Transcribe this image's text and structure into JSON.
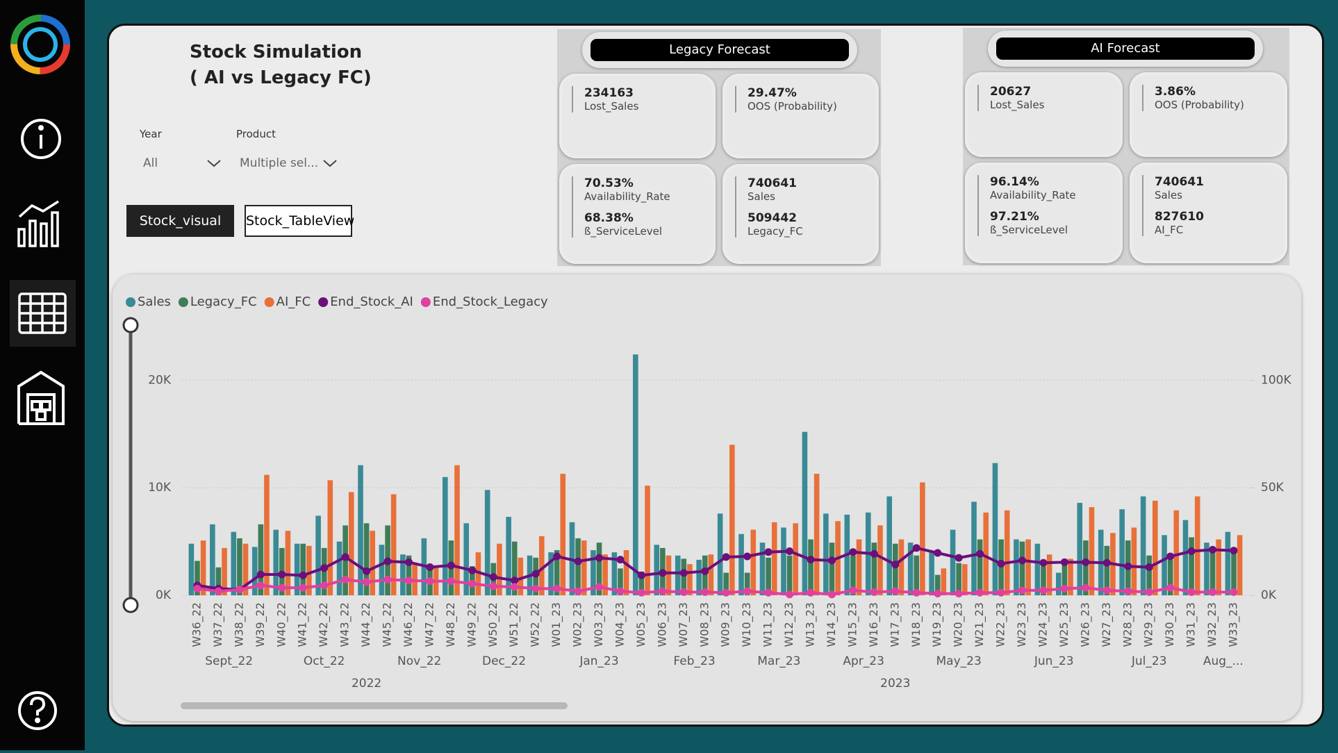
{
  "header": {
    "title_line1": "Stock Simulation",
    "title_line2": "( AI vs Legacy FC)"
  },
  "filters": [
    {
      "label": "Year",
      "value": "All"
    },
    {
      "label": "Product",
      "value": "Multiple sel..."
    }
  ],
  "buttons": [
    "Stock_visual",
    "Stock_TableView"
  ],
  "panels": [
    {
      "title": "Legacy Forecast",
      "cards": [
        {
          "items": [
            {
              "value": "234163",
              "label": "Lost_Sales"
            }
          ]
        },
        {
          "items": [
            {
              "value": "29.47%",
              "label": "OOS (Probability)"
            }
          ]
        },
        {
          "items": [
            {
              "value": "70.53%",
              "label": "Availability_Rate"
            },
            {
              "value": "68.38%",
              "label": "ß_ServiceLevel"
            }
          ]
        },
        {
          "items": [
            {
              "value": "740641",
              "label": "Sales"
            },
            {
              "value": "509442",
              "label": "Legacy_FC"
            }
          ]
        }
      ]
    },
    {
      "title": "AI Forecast",
      "cards": [
        {
          "items": [
            {
              "value": "20627",
              "label": "Lost_Sales"
            }
          ]
        },
        {
          "items": [
            {
              "value": "3.86%",
              "label": "OOS (Probability)"
            }
          ]
        },
        {
          "items": [
            {
              "value": "96.14%",
              "label": "Availability_Rate"
            },
            {
              "value": "97.21%",
              "label": "ß_ServiceLevel"
            }
          ]
        },
        {
          "items": [
            {
              "value": "740641",
              "label": "Sales"
            },
            {
              "value": "827610",
              "label": "AI_FC"
            }
          ]
        }
      ]
    }
  ],
  "chart_data": {
    "type": "bar",
    "categories": [
      "W36_22",
      "W37_22",
      "W38_22",
      "W39_22",
      "W40_22",
      "W41_22",
      "W42_22",
      "W43_22",
      "W44_22",
      "W45_22",
      "W46_22",
      "W47_22",
      "W48_22",
      "W49_22",
      "W50_22",
      "W51_22",
      "W52_22",
      "W01_23",
      "W02_23",
      "W03_23",
      "W04_23",
      "W05_23",
      "W06_23",
      "W07_23",
      "W08_23",
      "W09_23",
      "W10_23",
      "W11_23",
      "W12_23",
      "W13_23",
      "W14_23",
      "W15_23",
      "W16_23",
      "W17_23",
      "W18_23",
      "W19_23",
      "W20_23",
      "W21_23",
      "W22_23",
      "W23_23",
      "W24_23",
      "W25_23",
      "W26_23",
      "W27_23",
      "W28_23",
      "W29_23",
      "W30_23",
      "W31_23",
      "W32_23",
      "W33_23"
    ],
    "x_month_labels": [
      "Sept_22",
      null,
      null,
      null,
      "Oct_22",
      null,
      null,
      null,
      null,
      "Nov_22",
      null,
      null,
      null,
      "Dec_22",
      null,
      null,
      null,
      "Jan_23",
      null,
      null,
      null,
      null,
      "Feb_23",
      null,
      null,
      null,
      "Mar_23",
      null,
      null,
      null,
      "Apr_23",
      null,
      null,
      null,
      "May_23",
      null,
      null,
      null,
      null,
      "Jun_23",
      null,
      null,
      null,
      "Jul_23",
      null,
      null,
      null,
      null,
      "Aug_...",
      null
    ],
    "x_year_labels": [
      "2022",
      null,
      null,
      null,
      null,
      null,
      null,
      null,
      null,
      null,
      null,
      null,
      null,
      null,
      null,
      null,
      null,
      "2023",
      null,
      null,
      null,
      null,
      null,
      null,
      null,
      null,
      null,
      null,
      null,
      null,
      null,
      null,
      null,
      null,
      null,
      null,
      null,
      null,
      null,
      null,
      null,
      null,
      null,
      null,
      null,
      null,
      null,
      null,
      null,
      null
    ],
    "series": [
      {
        "name": "Sales",
        "color": "#3a8a96",
        "type": "bar",
        "values": [
          4800,
          6600,
          5900,
          4500,
          6100,
          4800,
          7400,
          5000,
          12100,
          4700,
          3800,
          5300,
          11000,
          6700,
          9800,
          7300,
          3700,
          4000,
          6800,
          4200,
          4000,
          22400,
          4700,
          3700,
          3300,
          7600,
          5700,
          4900,
          6300,
          15200,
          7600,
          7500,
          7700,
          9200,
          4900,
          4100,
          6100,
          8700,
          12300,
          5200,
          4800,
          2100,
          8600,
          6100,
          8000,
          9200,
          5600,
          7000,
          4900,
          5900
        ]
      },
      {
        "name": "Legacy_FC",
        "color": "#3f7d58",
        "type": "bar",
        "values": [
          3200,
          2600,
          5300,
          6600,
          4400,
          4800,
          4400,
          6500,
          6700,
          6500,
          3700,
          2400,
          5100,
          2700,
          3000,
          5000,
          3500,
          4200,
          5300,
          4900,
          2500,
          2200,
          4400,
          3400,
          3700,
          2100,
          2100,
          3500,
          3700,
          5200,
          4900,
          3700,
          4900,
          4800,
          3700,
          1900,
          3000,
          5200,
          5200,
          5000,
          2700,
          2800,
          5100,
          4600,
          5100,
          3700,
          3300,
          5400,
          4000,
          4000
        ]
      },
      {
        "name": "AI_FC",
        "color": "#e8703a",
        "type": "bar",
        "values": [
          5100,
          4400,
          4800,
          11200,
          6000,
          4600,
          10700,
          9600,
          6000,
          9400,
          3000,
          2600,
          12100,
          4000,
          4800,
          3500,
          5500,
          11300,
          5100,
          3800,
          4200,
          10200,
          3700,
          2900,
          3800,
          14000,
          6100,
          6800,
          6700,
          11300,
          6900,
          5200,
          6500,
          5200,
          10500,
          2500,
          2900,
          7700,
          7900,
          5200,
          3800,
          3400,
          8200,
          5800,
          6300,
          8800,
          7900,
          9200,
          5200,
          5600
        ]
      },
      {
        "name": "End_Stock_AI",
        "color": "#6b0f7a",
        "type": "line",
        "axis": "y2",
        "values": [
          4600,
          3100,
          2700,
          9700,
          9700,
          9300,
          12700,
          17800,
          11200,
          15800,
          15400,
          13100,
          13900,
          11600,
          8500,
          6900,
          10000,
          18100,
          15800,
          17400,
          16600,
          9300,
          10400,
          10400,
          11200,
          17800,
          18100,
          20100,
          20500,
          16600,
          16200,
          20100,
          19300,
          14300,
          22000,
          19700,
          17400,
          19300,
          14700,
          16200,
          15100,
          15400,
          15400,
          15100,
          13500,
          13100,
          18100,
          20500,
          21200,
          20800
        ]
      },
      {
        "name": "End_Stock_Legacy",
        "color": "#e040a0",
        "type": "line",
        "axis": "y2",
        "values": [
          3100,
          1900,
          2700,
          4600,
          3500,
          3500,
          4600,
          7300,
          6200,
          7300,
          6900,
          6600,
          6600,
          5400,
          4200,
          3900,
          3100,
          3100,
          1900,
          3900,
          1900,
          1200,
          1900,
          1500,
          1500,
          1200,
          1900,
          1200,
          400,
          1200,
          400,
          2300,
          1500,
          1900,
          1200,
          800,
          800,
          1200,
          1200,
          2300,
          2300,
          3100,
          3500,
          2300,
          1900,
          1500,
          3500,
          1500,
          1500,
          1500
        ]
      }
    ],
    "ylim": [
      0,
      25000
    ],
    "yticks": [
      {
        "value": 0,
        "label": "0K"
      },
      {
        "value": 10000,
        "label": "10K"
      },
      {
        "value": 20000,
        "label": "20K"
      }
    ],
    "y2lim": [
      0,
      125000
    ],
    "y2ticks": [
      {
        "value": 0,
        "label": "0K"
      },
      {
        "value": 50000,
        "label": "50K"
      },
      {
        "value": 100000,
        "label": "100K"
      }
    ],
    "grid": true,
    "legend": "top-left"
  }
}
